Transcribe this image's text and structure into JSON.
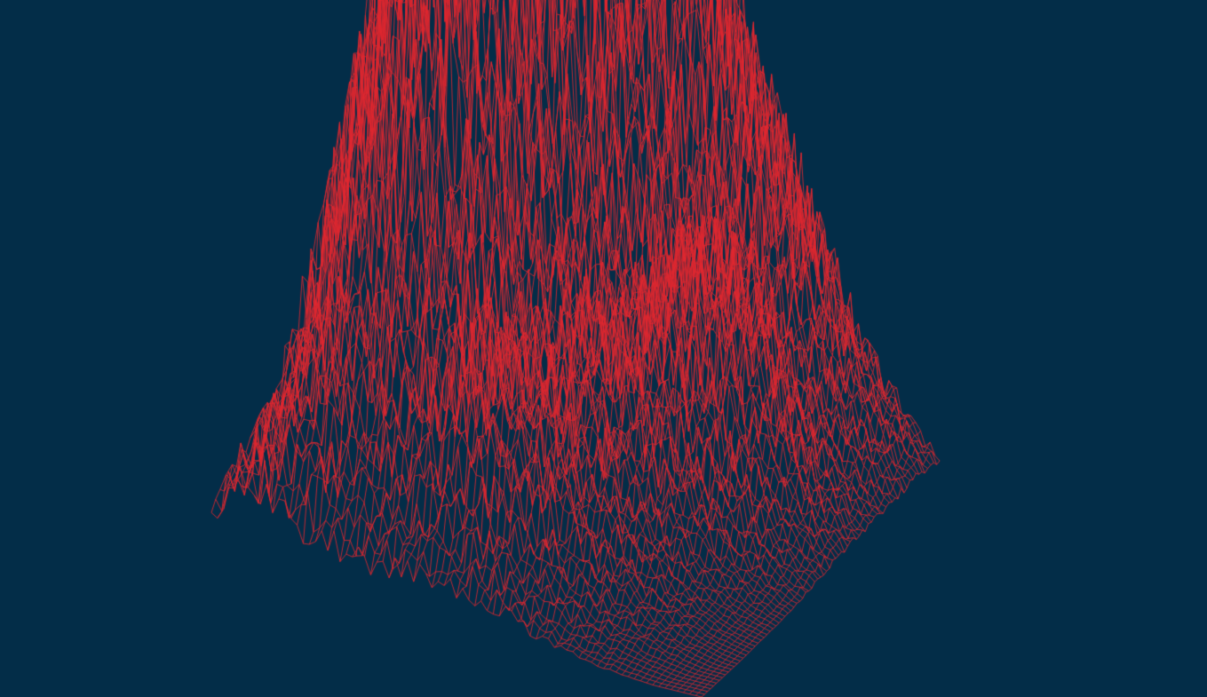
{
  "scene": {
    "background_color": "#032d48",
    "line_color": "#e0272f",
    "render_style": "wireframe",
    "surface": "terrain-heightmap"
  }
}
